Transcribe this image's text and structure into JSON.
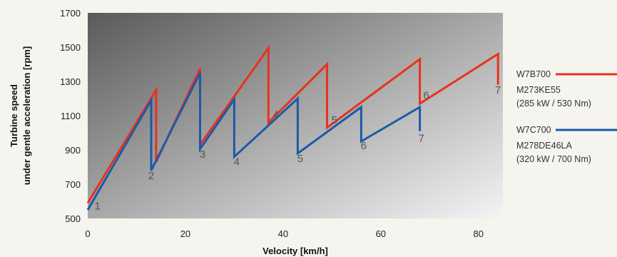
{
  "chart_data": {
    "type": "line",
    "title": "",
    "xlabel": "Velocity [km/h]",
    "ylabel": [
      "Turbine speed",
      "under gentle acceleration [rpm]"
    ],
    "xlim": [
      0,
      85
    ],
    "ylim": [
      500,
      1700
    ],
    "x_ticks": [
      0,
      20,
      40,
      60,
      80
    ],
    "y_ticks": [
      500,
      700,
      900,
      1100,
      1300,
      1500,
      1700
    ],
    "grid": false,
    "legend": "right",
    "series": [
      {
        "name": "W7B700",
        "subtitle": [
          "M273KE55",
          "(285 kW / 530 Nm)"
        ],
        "color": "#e8321e",
        "points": [
          [
            0,
            590
          ],
          [
            14,
            1250
          ],
          [
            14,
            830
          ],
          [
            23,
            1375
          ],
          [
            23,
            930
          ],
          [
            37,
            1495
          ],
          [
            37,
            1060
          ],
          [
            49,
            1400
          ],
          [
            49,
            1030
          ],
          [
            68,
            1430
          ],
          [
            68,
            1170
          ],
          [
            84,
            1460
          ],
          [
            84,
            1280
          ]
        ]
      },
      {
        "name": "W7C700",
        "subtitle": [
          "M278DE46LA",
          "(320 kW / 700 Nm)"
        ],
        "color": "#1a5aa8",
        "points": [
          [
            0,
            550
          ],
          [
            13,
            1190
          ],
          [
            13,
            780
          ],
          [
            23,
            1350
          ],
          [
            23,
            905
          ],
          [
            30,
            1195
          ],
          [
            30,
            860
          ],
          [
            43,
            1200
          ],
          [
            43,
            880
          ],
          [
            56,
            1150
          ],
          [
            56,
            950
          ],
          [
            68,
            1150
          ],
          [
            68,
            1010
          ]
        ]
      }
    ],
    "annotations": [
      {
        "text": "1",
        "x": 2,
        "y": 553
      },
      {
        "text": "2",
        "x": 13,
        "y": 730
      },
      {
        "text": "3",
        "x": 23.5,
        "y": 855
      },
      {
        "text": "4",
        "x": 30.5,
        "y": 810
      },
      {
        "text": "4",
        "x": 38.5,
        "y": 1085
      },
      {
        "text": "5",
        "x": 43.5,
        "y": 830
      },
      {
        "text": "5",
        "x": 50.5,
        "y": 1055
      },
      {
        "text": "6",
        "x": 56.5,
        "y": 905
      },
      {
        "text": "6",
        "x": 69.3,
        "y": 1198
      },
      {
        "text": "7",
        "x": 68.3,
        "y": 948
      },
      {
        "text": "7",
        "x": 84,
        "y": 1230
      }
    ]
  }
}
